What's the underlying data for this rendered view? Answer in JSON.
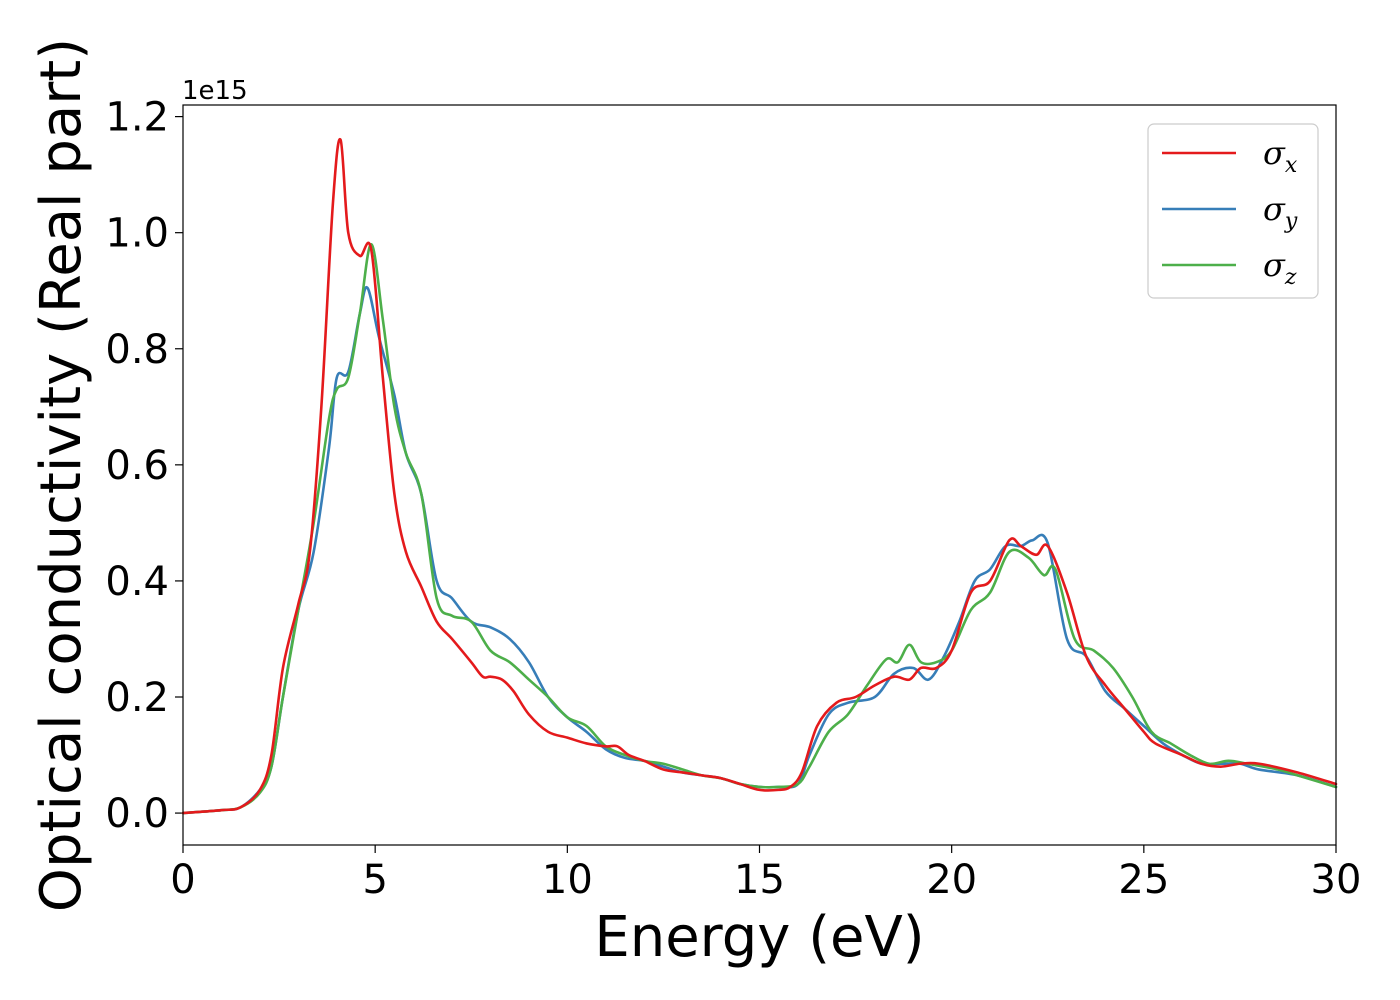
{
  "chart_data": {
    "type": "line",
    "xlabel": "Energy (eV)",
    "ylabel": "Optical conductivity (Real part)",
    "y_offset_label": "1e15",
    "xlim": [
      0,
      30
    ],
    "ylim": [
      -0.055,
      1.22
    ],
    "xticks": [
      0,
      5,
      10,
      15,
      20,
      25,
      30
    ],
    "xtick_labels": [
      "0",
      "5",
      "10",
      "15",
      "20",
      "25",
      "30"
    ],
    "yticks": [
      0.0,
      0.2,
      0.4,
      0.6,
      0.8,
      1.0,
      1.2
    ],
    "ytick_labels": [
      "0.0",
      "0.2",
      "0.4",
      "0.6",
      "0.8",
      "1.0",
      "1.2"
    ],
    "grid": false,
    "legend": {
      "position": "top-right"
    },
    "series": [
      {
        "name": "σ",
        "sub": "x",
        "color": "#e41a1c",
        "x": [
          0,
          1,
          1.5,
          2,
          2.3,
          2.6,
          3,
          3.3,
          3.6,
          3.9,
          4.1,
          4.3,
          4.6,
          4.9,
          5.2,
          5.5,
          5.8,
          6.2,
          6.6,
          7,
          7.5,
          7.8,
          8,
          8.3,
          8.6,
          9,
          9.5,
          10,
          10.5,
          11,
          11.3,
          11.6,
          12,
          12.5,
          13,
          13.5,
          14,
          14.5,
          15,
          15.5,
          15.8,
          16.1,
          16.5,
          17,
          17.5,
          18,
          18.5,
          18.9,
          19.2,
          19.6,
          20,
          20.5,
          21,
          21.5,
          21.8,
          22.2,
          22.5,
          23,
          23.5,
          24,
          24.5,
          25,
          25.3,
          26,
          26.5,
          27,
          27.5,
          28,
          29,
          30
        ],
        "y": [
          0.0,
          0.005,
          0.01,
          0.04,
          0.1,
          0.25,
          0.36,
          0.45,
          0.7,
          1.05,
          1.16,
          1.0,
          0.96,
          0.97,
          0.75,
          0.55,
          0.45,
          0.39,
          0.33,
          0.3,
          0.26,
          0.235,
          0.235,
          0.23,
          0.21,
          0.17,
          0.14,
          0.13,
          0.12,
          0.115,
          0.115,
          0.1,
          0.09,
          0.075,
          0.07,
          0.065,
          0.06,
          0.05,
          0.04,
          0.04,
          0.045,
          0.07,
          0.15,
          0.19,
          0.2,
          0.22,
          0.235,
          0.23,
          0.25,
          0.25,
          0.28,
          0.38,
          0.4,
          0.47,
          0.46,
          0.445,
          0.46,
          0.38,
          0.27,
          0.22,
          0.18,
          0.14,
          0.12,
          0.1,
          0.085,
          0.08,
          0.085,
          0.085,
          0.07,
          0.05
        ]
      },
      {
        "name": "σ",
        "sub": "y",
        "color": "#377eb8",
        "x": [
          0,
          1,
          1.5,
          2,
          2.3,
          2.6,
          3,
          3.4,
          3.8,
          4,
          4.3,
          4.6,
          4.8,
          5.1,
          5.5,
          5.8,
          6.2,
          6.6,
          7,
          7.5,
          8,
          8.5,
          9,
          9.5,
          10,
          10.5,
          11,
          11.5,
          12,
          12.5,
          13,
          13.5,
          14,
          14.5,
          15,
          15.5,
          16,
          16.3,
          16.8,
          17.3,
          18,
          18.5,
          19,
          19.4,
          19.8,
          20.2,
          20.6,
          21,
          21.4,
          21.8,
          22.1,
          22.5,
          23,
          23.5,
          24,
          24.5,
          25,
          25.5,
          26,
          26.5,
          27,
          27.5,
          28,
          29,
          30
        ],
        "y": [
          0.0,
          0.005,
          0.01,
          0.04,
          0.08,
          0.2,
          0.35,
          0.45,
          0.63,
          0.75,
          0.76,
          0.86,
          0.905,
          0.82,
          0.72,
          0.62,
          0.55,
          0.4,
          0.37,
          0.33,
          0.32,
          0.3,
          0.26,
          0.2,
          0.165,
          0.14,
          0.11,
          0.095,
          0.09,
          0.08,
          0.07,
          0.065,
          0.06,
          0.05,
          0.045,
          0.045,
          0.05,
          0.1,
          0.17,
          0.19,
          0.2,
          0.24,
          0.25,
          0.23,
          0.27,
          0.33,
          0.4,
          0.42,
          0.46,
          0.46,
          0.47,
          0.465,
          0.3,
          0.27,
          0.21,
          0.18,
          0.15,
          0.12,
          0.1,
          0.085,
          0.085,
          0.085,
          0.075,
          0.065,
          0.045
        ]
      },
      {
        "name": "σ",
        "sub": "z",
        "color": "#4daf4a",
        "x": [
          0,
          1,
          1.5,
          2,
          2.3,
          2.6,
          3,
          3.4,
          3.8,
          4,
          4.3,
          4.6,
          4.9,
          5.2,
          5.5,
          5.8,
          6.2,
          6.6,
          7,
          7.5,
          8,
          8.5,
          9,
          9.5,
          10,
          10.5,
          11,
          11.5,
          12,
          12.5,
          13,
          13.5,
          14,
          14.5,
          15,
          15.5,
          16,
          16.3,
          16.8,
          17.3,
          17.8,
          18.3,
          18.6,
          18.9,
          19.2,
          19.6,
          20,
          20.5,
          21,
          21.5,
          22,
          22.4,
          22.7,
          23.2,
          23.7,
          24.2,
          24.7,
          25.2,
          25.7,
          26.2,
          26.7,
          27.2,
          27.7,
          28.5,
          29,
          30
        ],
        "y": [
          0.0,
          0.005,
          0.01,
          0.035,
          0.08,
          0.2,
          0.35,
          0.5,
          0.68,
          0.73,
          0.75,
          0.86,
          0.98,
          0.85,
          0.7,
          0.62,
          0.55,
          0.37,
          0.34,
          0.33,
          0.28,
          0.26,
          0.23,
          0.2,
          0.165,
          0.15,
          0.115,
          0.1,
          0.09,
          0.085,
          0.075,
          0.065,
          0.06,
          0.05,
          0.045,
          0.045,
          0.05,
          0.08,
          0.14,
          0.17,
          0.22,
          0.265,
          0.26,
          0.29,
          0.26,
          0.26,
          0.28,
          0.35,
          0.38,
          0.45,
          0.44,
          0.41,
          0.42,
          0.3,
          0.28,
          0.25,
          0.2,
          0.14,
          0.12,
          0.1,
          0.085,
          0.09,
          0.085,
          0.075,
          0.065,
          0.045
        ]
      }
    ]
  }
}
